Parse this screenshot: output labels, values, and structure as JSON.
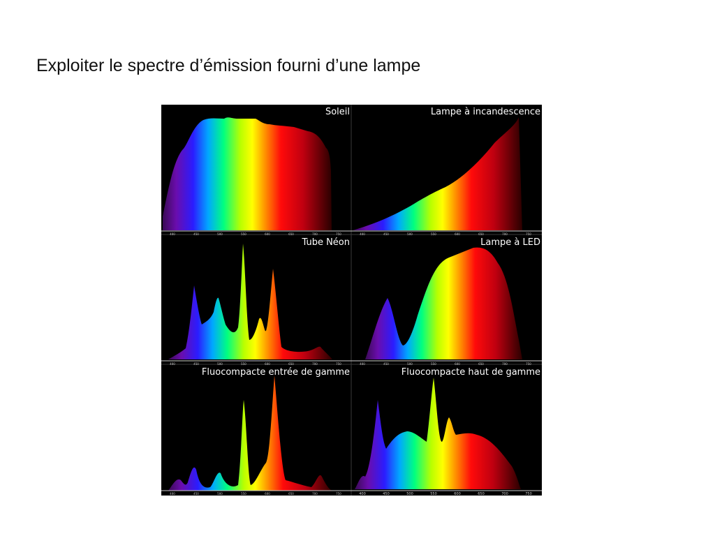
{
  "slide": {
    "title": "Exploiter le spectre d’émission fourni d’une lampe"
  },
  "figure": {
    "panels": [
      {
        "label": "Soleil"
      },
      {
        "label": "Lampe à incandescence"
      },
      {
        "label": "Tube Néon"
      },
      {
        "label": "Lampe à LED"
      },
      {
        "label": "Fluocompacte entrée de gamme"
      },
      {
        "label": "Fluocompacte haut de gamme"
      }
    ],
    "axis_ticks": [
      "400",
      "450",
      "500",
      "550",
      "600",
      "650",
      "700",
      "750"
    ],
    "colors": {
      "background": "#000000",
      "axis": "#cfcfcf",
      "spectrum_violet": "#6a0dad",
      "spectrum_blue": "#1020ff",
      "spectrum_green": "#30ff30",
      "spectrum_yellow": "#ffff20",
      "spectrum_red": "#ff1010"
    }
  }
}
